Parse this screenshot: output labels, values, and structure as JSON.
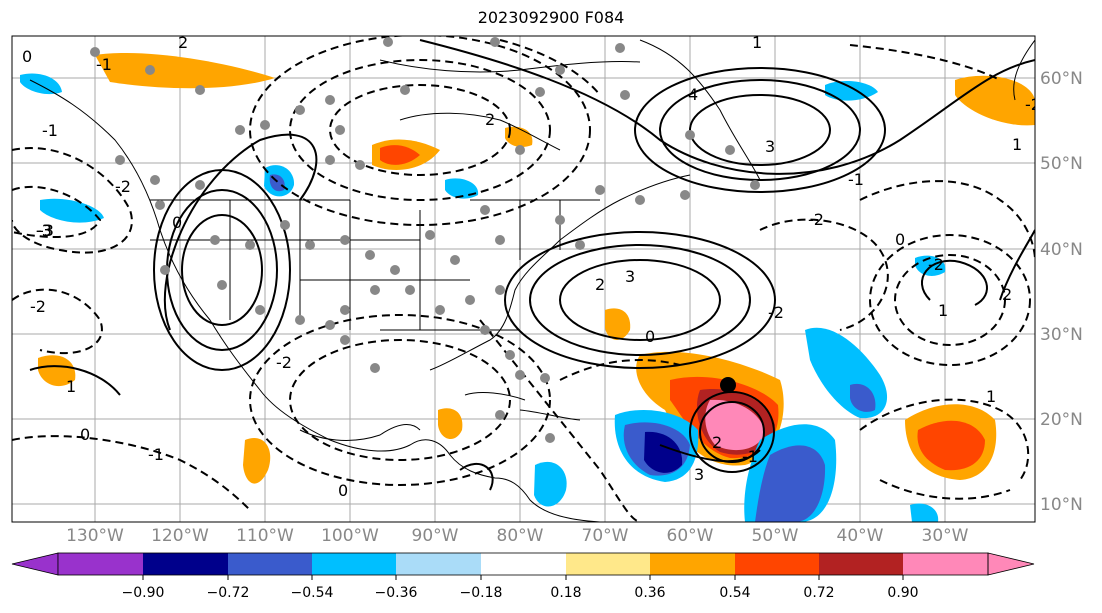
{
  "title": "2023092900 F084",
  "lon_labels": [
    "130°W",
    "120°W",
    "110°W",
    "100°W",
    "90°W",
    "80°W",
    "70°W",
    "60°W",
    "50°W",
    "40°W",
    "30°W"
  ],
  "lat_labels": [
    "60°N",
    "50°N",
    "40°N",
    "30°N",
    "20°N",
    "10°N"
  ],
  "colorbar": {
    "tick_labels": [
      "−0.90",
      "−0.72",
      "−0.54",
      "−0.36",
      "−0.18",
      "0.18",
      "0.36",
      "0.54",
      "0.72",
      "0.90"
    ],
    "under_color": "#9932cc",
    "over_color": "#ff88b8",
    "bin_colors": [
      "#9932cc",
      "#00008b",
      "#3a5bcc",
      "#00bfff",
      "#aadcf8",
      "#ffffff",
      "#ffe88a",
      "#ffa500",
      "#ff4500",
      "#b22222",
      "#ff88b8"
    ]
  },
  "contour_labels": [
    "0",
    "2",
    "-1",
    "-2",
    "-3",
    "0",
    "-2",
    "2",
    "3",
    "4",
    "1",
    "0",
    "-1",
    "-2",
    "-3",
    "1",
    "2",
    "3",
    "-3",
    "-2",
    "0",
    "-2",
    "-1",
    "1",
    "2",
    "3",
    "-2",
    "0",
    "-1",
    "1",
    "-1",
    "0",
    "2",
    "-2",
    "1"
  ],
  "marker": "tropical-cyclone-center"
}
